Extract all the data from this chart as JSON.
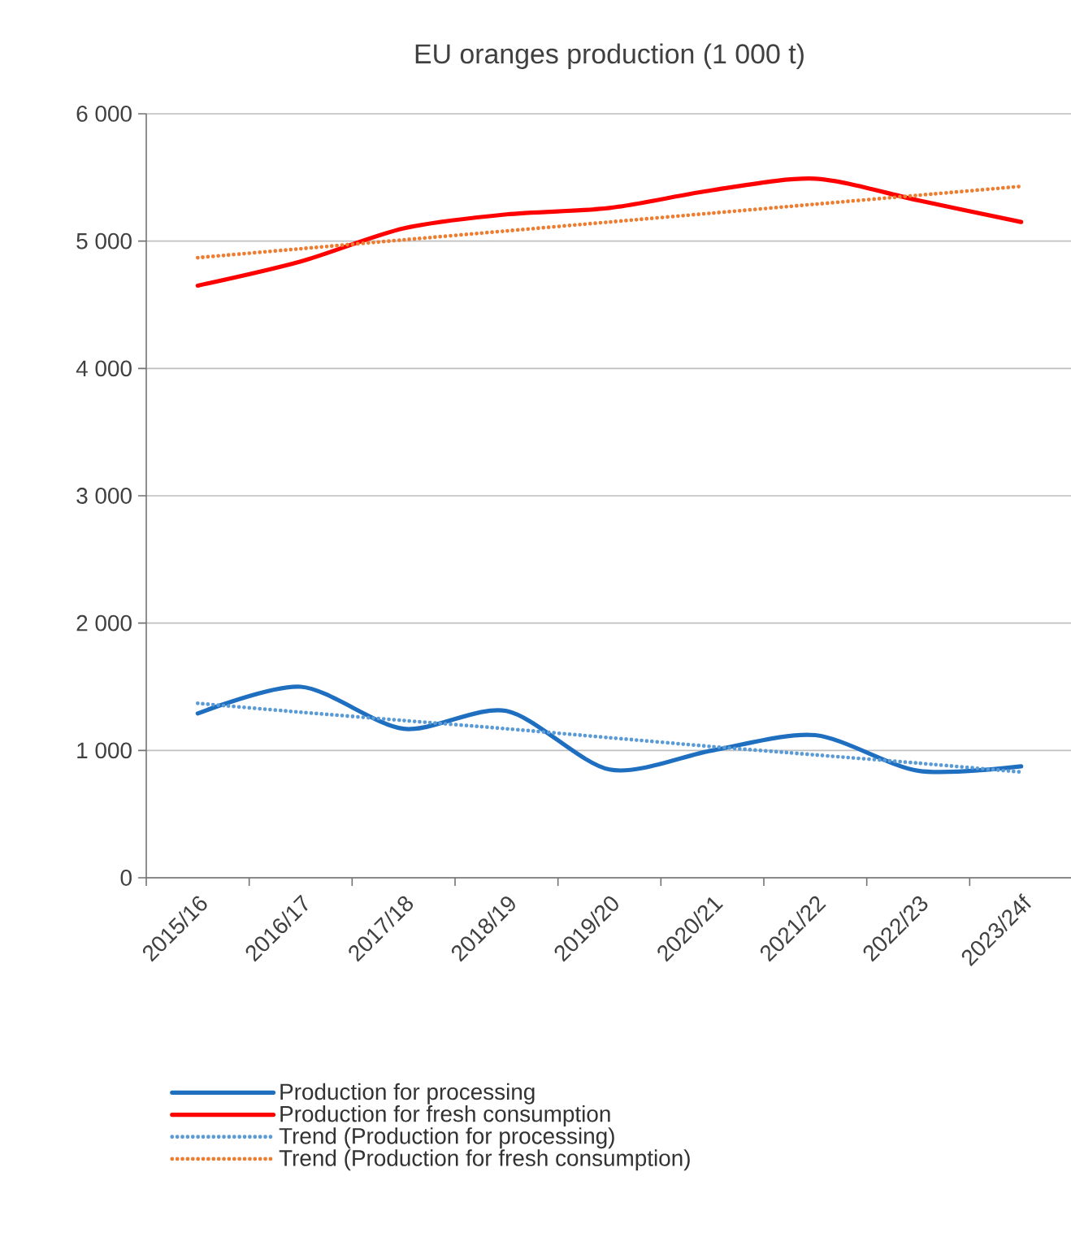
{
  "chart_data": {
    "type": "line",
    "title": "EU oranges production (1 000 t)",
    "categories": [
      "2015/16",
      "2016/17",
      "2017/18",
      "2018/19",
      "2019/20",
      "2020/21",
      "2021/22",
      "2022/23",
      "2023/24f"
    ],
    "series": [
      {
        "name": "Production for processing",
        "color": "#1f6fc1",
        "line_style": "solid",
        "values": [
          1290,
          1500,
          1170,
          1310,
          850,
          1000,
          1120,
          840,
          875
        ]
      },
      {
        "name": "Production for fresh consumption",
        "color": "#ff0000",
        "line_style": "solid",
        "values": [
          4650,
          4840,
          5100,
          5210,
          5260,
          5400,
          5490,
          5320,
          5150
        ]
      },
      {
        "name": "Trend (Production for processing)",
        "color": "#5b9bd5",
        "line_style": "dotted",
        "values": [
          1370,
          1300,
          1235,
          1170,
          1100,
          1030,
          965,
          900,
          830
        ]
      },
      {
        "name": "Trend (Production for fresh consumption)",
        "color": "#ed7d31",
        "line_style": "dotted",
        "values": [
          4870,
          4940,
          5010,
          5080,
          5150,
          5220,
          5290,
          5360,
          5430
        ]
      }
    ],
    "ylim": [
      0,
      6000
    ],
    "yticks": [
      {
        "value": 0,
        "label": "0"
      },
      {
        "value": 1000,
        "label": "1 000"
      },
      {
        "value": 2000,
        "label": "2 000"
      },
      {
        "value": 3000,
        "label": "3 000"
      },
      {
        "value": 4000,
        "label": "4 000"
      },
      {
        "value": 5000,
        "label": "5 000"
      },
      {
        "value": 6000,
        "label": "6 000"
      }
    ],
    "grid": "y",
    "legend": "bottom",
    "marker": "none"
  }
}
